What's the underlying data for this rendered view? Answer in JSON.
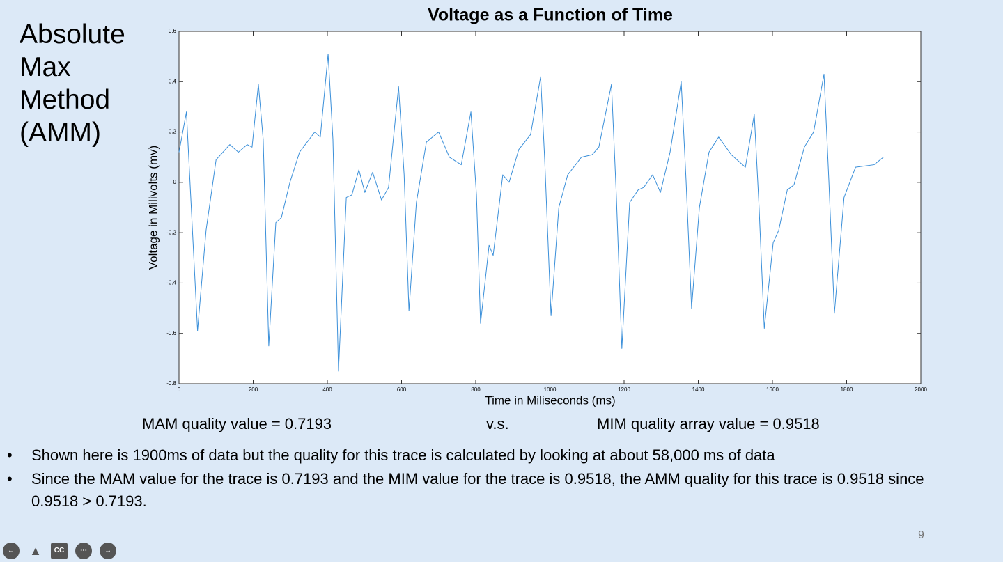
{
  "slide": {
    "title": "Absolute Max Method (AMM)",
    "comparison": {
      "left": "MAM quality value = 0.7193",
      "middle": "v.s.",
      "right": "MIM quality array value = 0.9518"
    },
    "bullets": [
      "Shown here is 1900ms of data but the quality for this trace is calculated by looking at about 58,000 ms of data",
      "Since the MAM value for the trace is 0.7193 and the MIM value for the trace is 0.9518, the AMM quality for this trace is 0.9518 since 0.9518 > 0.7193."
    ],
    "page_number": "9",
    "controls": {
      "captions": "CC"
    }
  },
  "chart_data": {
    "type": "line",
    "title": "Voltage as a Function of Time",
    "x_label": "Time in Miliseconds (ms)",
    "y_label": "Voltage in Milivolts (mv)",
    "series": [
      {
        "name": "Voltage",
        "color": "#3a8fd9",
        "x": [
          0,
          20,
          50,
          73,
          100,
          137,
          160,
          184,
          197,
          214,
          227,
          242,
          261,
          276,
          299,
          325,
          366,
          381,
          402,
          415,
          430,
          451,
          466,
          485,
          501,
          522,
          546,
          565,
          592,
          607,
          620,
          640,
          667,
          700,
          729,
          761,
          787,
          802,
          813,
          836,
          847,
          873,
          890,
          916,
          948,
          975,
          986,
          1003,
          1024,
          1048,
          1085,
          1114,
          1132,
          1166,
          1179,
          1194,
          1215,
          1238,
          1253,
          1277,
          1298,
          1324,
          1354,
          1367,
          1382,
          1403,
          1429,
          1455,
          1489,
          1527,
          1551,
          1564,
          1578,
          1602,
          1617,
          1640,
          1658,
          1686,
          1711,
          1739,
          1752,
          1767,
          1793,
          1824,
          1874,
          1899
        ],
        "values": [
          0.12,
          0.28,
          -0.59,
          -0.19,
          0.09,
          0.15,
          0.12,
          0.15,
          0.14,
          0.39,
          0.17,
          -0.65,
          -0.16,
          -0.14,
          0.0,
          0.12,
          0.2,
          0.18,
          0.51,
          0.17,
          -0.75,
          -0.06,
          -0.05,
          0.05,
          -0.04,
          0.04,
          -0.07,
          -0.02,
          0.38,
          0.03,
          -0.51,
          -0.08,
          0.16,
          0.2,
          0.1,
          0.07,
          0.28,
          -0.05,
          -0.56,
          -0.25,
          -0.29,
          0.03,
          0.0,
          0.13,
          0.19,
          0.42,
          0.09,
          -0.53,
          -0.1,
          0.03,
          0.1,
          0.11,
          0.14,
          0.39,
          -0.05,
          -0.66,
          -0.08,
          -0.03,
          -0.02,
          0.03,
          -0.04,
          0.12,
          0.4,
          0.01,
          -0.5,
          -0.1,
          0.12,
          0.18,
          0.11,
          0.06,
          0.27,
          -0.1,
          -0.58,
          -0.24,
          -0.19,
          -0.03,
          -0.01,
          0.14,
          0.2,
          0.43,
          0.01,
          -0.52,
          -0.06,
          0.06,
          0.07,
          0.1
        ]
      }
    ],
    "xlim": [
      0,
      2000
    ],
    "ylim": [
      -0.8,
      0.6
    ],
    "xticks": [
      0,
      200,
      400,
      600,
      800,
      1000,
      1200,
      1400,
      1600,
      1800,
      2000
    ],
    "yticks": [
      -0.8,
      -0.6,
      -0.4,
      -0.2,
      0,
      0.2,
      0.4,
      0.6
    ],
    "grid": false
  }
}
